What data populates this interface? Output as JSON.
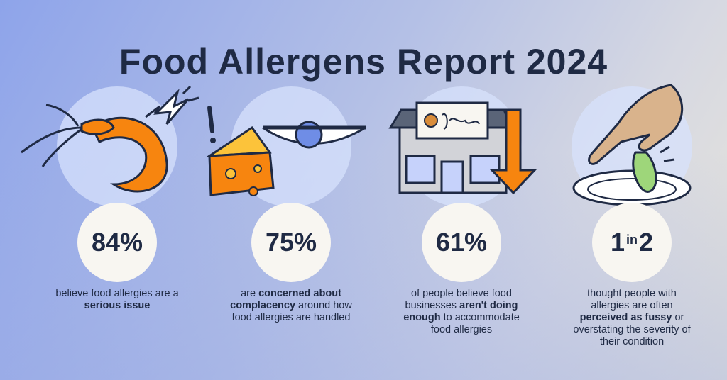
{
  "title": "Food Allergens Report 2024",
  "colors": {
    "accent": "#f7850f",
    "text": "#1f2a44",
    "stat_bg": "#f8f6f1"
  },
  "stats": [
    {
      "icon": "shrimp-icon",
      "value": "84%",
      "caption_parts": [
        "believe food allergies are a ",
        "serious issue",
        ""
      ]
    },
    {
      "icon": "cheese-eye-icon",
      "value": "75%",
      "caption_parts": [
        "are ",
        "concerned about complacency",
        " around how food allergies are handled"
      ]
    },
    {
      "icon": "restaurant-down-arrow-icon",
      "value": "61%",
      "caption_parts": [
        "of people believe food businesses ",
        "aren't doing enough",
        " to accommodate food allergies"
      ]
    },
    {
      "icon": "hand-plate-lettuce-icon",
      "value_a": "1",
      "value_in": "in",
      "value_b": "2",
      "caption_parts": [
        "thought people with allergies are often ",
        "perceived as fussy",
        " or overstating the severity of their condition"
      ]
    }
  ]
}
